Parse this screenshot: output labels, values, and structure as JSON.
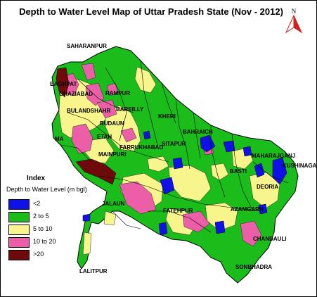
{
  "title": "Depth to Water Level Map of Uttar Pradesh State (Nov - 2012)",
  "north_label": "N",
  "legend": {
    "title": "Index",
    "subtitle": "Depth to Water Level (m bgl)",
    "items": [
      {
        "label": "<2",
        "color": "#1010e8"
      },
      {
        "label": "2 to 5",
        "color": "#1bbd1b"
      },
      {
        "label": "5 to 10",
        "color": "#f7f58c"
      },
      {
        "label": "10 to 20",
        "color": "#ec5fa8"
      },
      {
        "label": ">20",
        "color": "#6e0a0a"
      }
    ]
  },
  "district_labels": [
    "SAHARANPUR",
    "BAGHPAT",
    "GHAZIABAD",
    "RAMPUR",
    "BULANDSHAHR",
    "BAREILLY",
    "BUDAUN",
    "KHERI",
    "ETAH",
    "FARRUKHABAD",
    "BAHRAICH",
    "MAINPURI",
    "SITAPUR",
    "MAHARAJGANJ",
    "KUSHINAGAR",
    "BASTI",
    "DEORIA",
    "FATEHPUR",
    "AZAMGARH",
    "LALITPUR",
    "CHANDAULI",
    "SONBHADRA",
    "MA",
    "JALAUN"
  ]
}
